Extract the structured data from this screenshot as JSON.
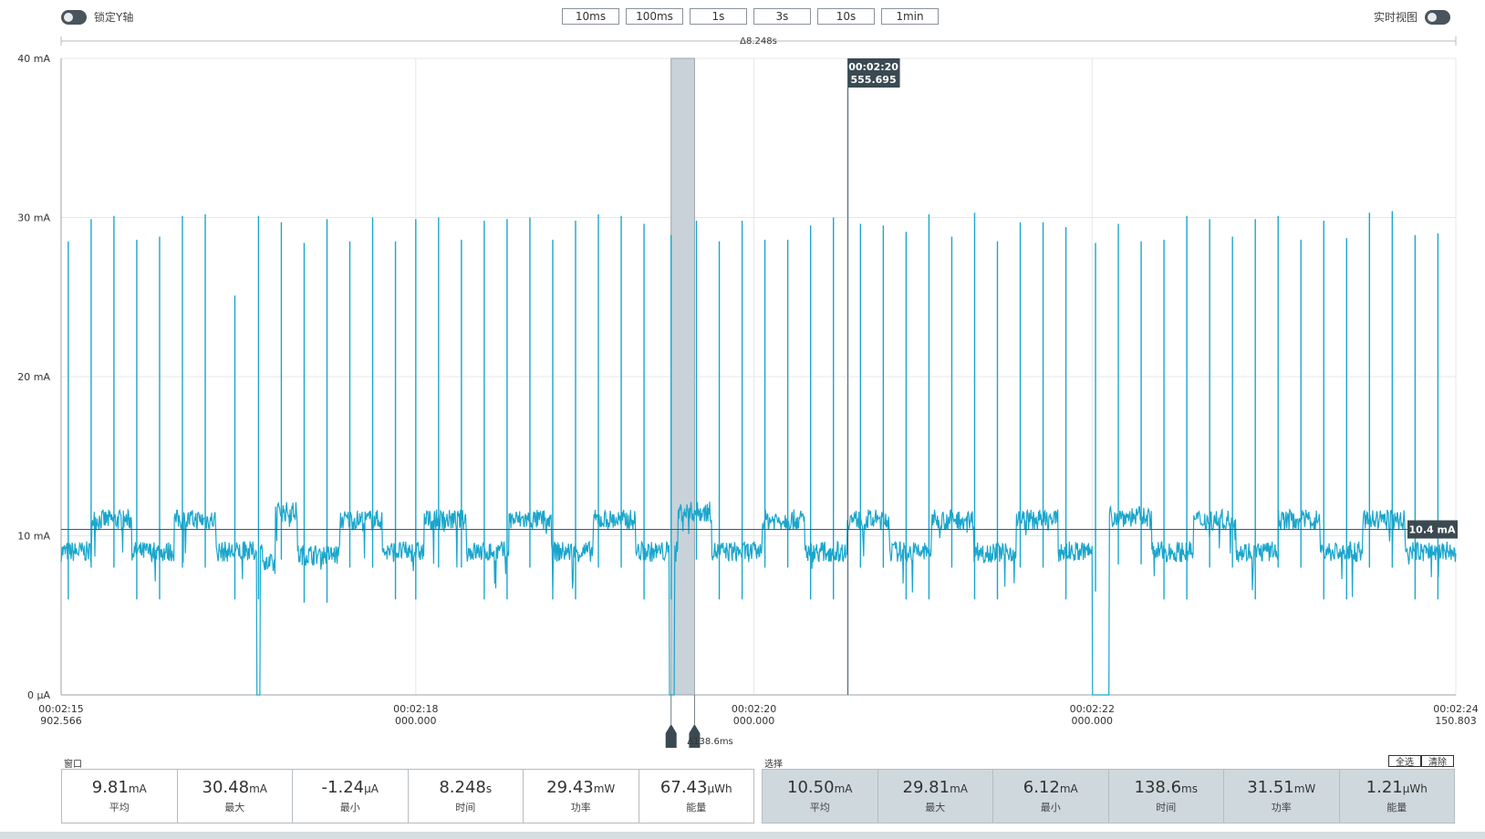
{
  "header": {
    "lock_y_label": "锁定Y轴",
    "realtime_label": "实时视图",
    "zoom_buttons": [
      "10ms",
      "100ms",
      "1s",
      "3s",
      "10s",
      "1min"
    ]
  },
  "chart_data": {
    "type": "line",
    "ylabel": "",
    "ylim": [
      0,
      40
    ],
    "y_ticks": [
      "40 mA",
      "30 mA",
      "20 mA",
      "10 mA",
      "0 μA"
    ],
    "y_tick_values": [
      40,
      30,
      20,
      10,
      0
    ],
    "x_ticks": [
      {
        "t": 135.902566,
        "line1": "00:02:15",
        "line2": "902.566"
      },
      {
        "t": 138.0,
        "line1": "00:02:18",
        "line2": "000.000"
      },
      {
        "t": 140.0,
        "line1": "00:02:20",
        "line2": "000.000"
      },
      {
        "t": 142.0,
        "line1": "00:02:22",
        "line2": "000.000"
      },
      {
        "t": 144.150803,
        "line1": "00:02:24",
        "line2": "150.803"
      }
    ],
    "xlim": [
      135.902566,
      144.150803
    ],
    "window_delta_label": "Δ8.248s",
    "cursor": {
      "t": 140.555695,
      "line1": "00:02:20",
      "line2": "555.695"
    },
    "avg_line": {
      "value": 10.4,
      "label": "10.4 mA"
    },
    "selection": {
      "start": 139.51,
      "end": 139.6486,
      "label": "Δ138.6ms"
    },
    "signal": {
      "spike_times": [
        135.945,
        136.08,
        136.215,
        136.35,
        136.485,
        136.62,
        136.755,
        136.93,
        137.07,
        137.205,
        137.34,
        137.475,
        137.61,
        137.745,
        137.88,
        138.0,
        138.135,
        138.27,
        138.405,
        138.54,
        138.675,
        138.81,
        138.945,
        139.08,
        139.215,
        139.35,
        139.51,
        139.66,
        139.795,
        139.93,
        140.065,
        140.2,
        140.335,
        140.47,
        140.63,
        140.765,
        140.9,
        141.035,
        141.17,
        141.305,
        141.44,
        141.575,
        141.71,
        141.845,
        142.02,
        142.155,
        142.29,
        142.425,
        142.56,
        142.695,
        142.83,
        142.965,
        143.1,
        143.235,
        143.37,
        143.505,
        143.64,
        143.775,
        143.91,
        144.045
      ],
      "spike_peaks": [
        28.5,
        29.9,
        30.1,
        28.6,
        28.8,
        30.1,
        30.2,
        25.1,
        30.1,
        29.7,
        28.4,
        29.9,
        28.5,
        30.0,
        28.5,
        29.9,
        30.0,
        28.6,
        29.8,
        29.9,
        30.0,
        28.6,
        29.8,
        30.2,
        30.1,
        29.6,
        28.9,
        29.8,
        28.5,
        29.8,
        28.6,
        28.6,
        29.5,
        30.0,
        29.6,
        29.5,
        29.1,
        30.2,
        28.8,
        30.3,
        28.5,
        29.7,
        29.7,
        29.4,
        28.4,
        29.6,
        28.5,
        28.6,
        30.1,
        29.9,
        28.8,
        29.9,
        30.1,
        28.6,
        29.8,
        28.7,
        30.3,
        30.4,
        28.9,
        29.0
      ],
      "level_transitions": [
        [
          135.902566,
          9.0
        ],
        [
          136.08,
          11.0
        ],
        [
          136.32,
          9.0
        ],
        [
          136.57,
          11.0
        ],
        [
          136.82,
          9.0
        ],
        [
          137.1,
          8.2
        ],
        [
          137.17,
          11.5
        ],
        [
          137.3,
          8.8
        ],
        [
          137.55,
          11.0
        ],
        [
          137.8,
          9.0
        ],
        [
          138.05,
          11.0
        ],
        [
          138.3,
          9.0
        ],
        [
          138.55,
          11.0
        ],
        [
          138.8,
          9.0
        ],
        [
          139.05,
          11.0
        ],
        [
          139.3,
          9.0
        ],
        [
          139.55,
          11.5
        ],
        [
          139.75,
          9.0
        ],
        [
          140.05,
          11.0
        ],
        [
          140.3,
          9.0
        ],
        [
          140.55,
          11.0
        ],
        [
          140.8,
          9.0
        ],
        [
          141.05,
          11.0
        ],
        [
          141.3,
          9.0
        ],
        [
          141.55,
          11.0
        ],
        [
          141.8,
          9.0
        ],
        [
          142.0,
          9.5
        ],
        [
          142.1,
          11.2
        ],
        [
          142.35,
          9.0
        ],
        [
          142.6,
          11.0
        ],
        [
          142.85,
          9.0
        ],
        [
          143.1,
          11.0
        ],
        [
          143.35,
          9.0
        ],
        [
          143.6,
          11.0
        ],
        [
          143.85,
          9.0
        ],
        [
          144.150803,
          9.0
        ]
      ],
      "dropouts": [
        [
          137.06,
          137.08
        ],
        [
          139.5,
          139.53
        ],
        [
          142.0,
          142.1
        ]
      ]
    }
  },
  "window_panel": {
    "label": "窗口",
    "stats": [
      {
        "value": "9.81",
        "unit": "mA",
        "label": "平均"
      },
      {
        "value": "30.48",
        "unit": "mA",
        "label": "最大"
      },
      {
        "value": "-1.24",
        "unit": "μA",
        "label": "最小"
      },
      {
        "value": "8.248",
        "unit": "s",
        "label": "时间"
      },
      {
        "value": "29.43",
        "unit": "mW",
        "label": "功率"
      },
      {
        "value": "67.43",
        "unit": "μWh",
        "label": "能量"
      }
    ]
  },
  "selection_panel": {
    "label": "选择",
    "select_all_label": "全选",
    "clear_label": "清除",
    "stats": [
      {
        "value": "10.50",
        "unit": "mA",
        "label": "平均"
      },
      {
        "value": "29.81",
        "unit": "mA",
        "label": "最大"
      },
      {
        "value": "6.12",
        "unit": "mA",
        "label": "最小"
      },
      {
        "value": "138.6",
        "unit": "ms",
        "label": "时间"
      },
      {
        "value": "31.51",
        "unit": "mW",
        "label": "功率"
      },
      {
        "value": "1.21",
        "unit": "μWh",
        "label": "能量"
      }
    ]
  },
  "colors": {
    "signal": "#1aa6cc",
    "grid": "#e4e7e9",
    "axis": "#9aa3a8",
    "label_bg": "#3b4a52",
    "selection_fill": "#c9d2d8"
  }
}
